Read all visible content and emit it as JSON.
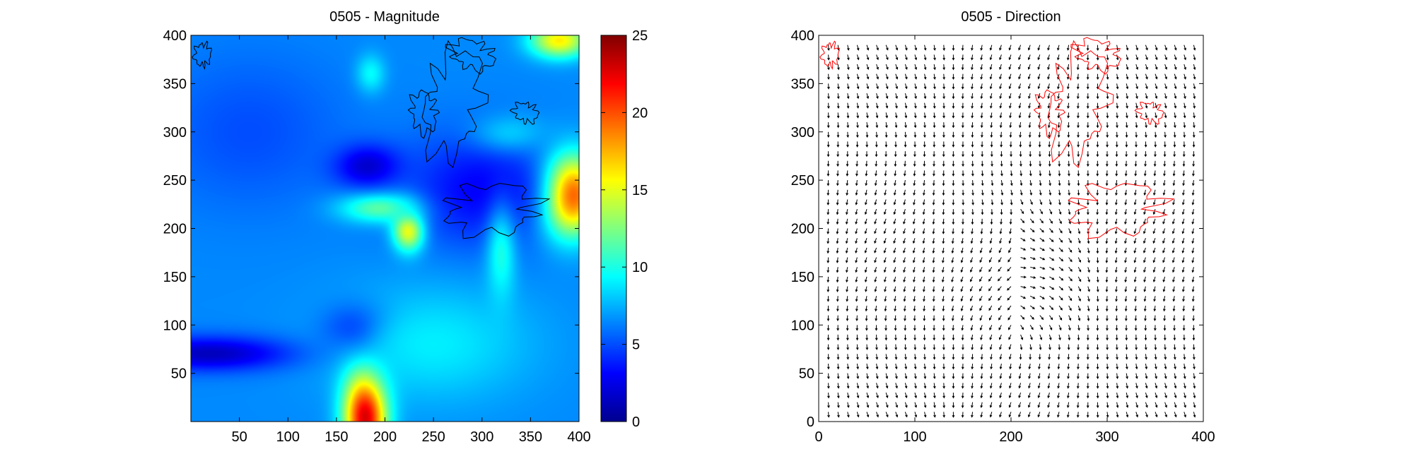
{
  "chart_data": [
    {
      "type": "heatmap",
      "title": "0505 -  Magnitude",
      "xlabel": "",
      "ylabel": "",
      "xlim": [
        0,
        400
      ],
      "ylim": [
        0,
        400
      ],
      "xticks": [
        50,
        100,
        150,
        200,
        250,
        300,
        350,
        400
      ],
      "yticks": [
        50,
        100,
        150,
        200,
        250,
        300,
        350,
        400
      ],
      "colormap": "jet",
      "colorbar": {
        "min": 0,
        "max": 25,
        "ticks": [
          0,
          5,
          10,
          15,
          20,
          25
        ]
      },
      "background_level": 6.5,
      "features": [
        {
          "x": 180,
          "y": 10,
          "rx": 22,
          "ry": 50,
          "value": 25
        },
        {
          "x": 175,
          "y": 95,
          "rx": 35,
          "ry": 25,
          "value": 1.5
        },
        {
          "x": 20,
          "y": 70,
          "rx": 90,
          "ry": 18,
          "value": 1.5
        },
        {
          "x": 225,
          "y": 200,
          "rx": 16,
          "ry": 22,
          "value": 20
        },
        {
          "x": 200,
          "y": 222,
          "rx": 45,
          "ry": 16,
          "value": 14
        },
        {
          "x": 390,
          "y": 235,
          "rx": 30,
          "ry": 40,
          "value": 25
        },
        {
          "x": 380,
          "y": 395,
          "rx": 30,
          "ry": 18,
          "value": 16
        },
        {
          "x": 180,
          "y": 265,
          "rx": 35,
          "ry": 22,
          "value": 1
        },
        {
          "x": 185,
          "y": 360,
          "rx": 15,
          "ry": 20,
          "value": 10
        },
        {
          "x": 300,
          "y": 240,
          "rx": 80,
          "ry": 60,
          "value": 3
        },
        {
          "x": 320,
          "y": 170,
          "rx": 15,
          "ry": 50,
          "value": 10
        },
        {
          "x": 250,
          "y": 80,
          "rx": 100,
          "ry": 60,
          "value": 9
        },
        {
          "x": 60,
          "y": 300,
          "rx": 100,
          "ry": 80,
          "value": 5
        },
        {
          "x": 330,
          "y": 300,
          "rx": 40,
          "ry": 20,
          "value": 8
        }
      ],
      "contour_color": "#000000"
    },
    {
      "type": "quiver",
      "title": "0505 -  Direction",
      "xlabel": "",
      "ylabel": "",
      "xlim": [
        0,
        400
      ],
      "ylim": [
        0,
        400
      ],
      "xticks": [
        0,
        100,
        200,
        300,
        400
      ],
      "yticks": [
        0,
        50,
        100,
        150,
        200,
        250,
        300,
        350,
        400
      ],
      "grid_spacing": 10,
      "arrow_color": "#000000",
      "contour_color": "#ff0000"
    }
  ],
  "contour_regions": [
    {
      "x": 270,
      "y": 330,
      "rx": 40,
      "ry": 70
    },
    {
      "x": 310,
      "y": 220,
      "rx": 70,
      "ry": 30
    },
    {
      "x": 240,
      "y": 320,
      "rx": 20,
      "ry": 25
    },
    {
      "x": 290,
      "y": 380,
      "rx": 30,
      "ry": 20
    },
    {
      "x": 345,
      "y": 320,
      "rx": 15,
      "ry": 15
    },
    {
      "x": 12,
      "y": 380,
      "rx": 10,
      "ry": 18
    }
  ]
}
